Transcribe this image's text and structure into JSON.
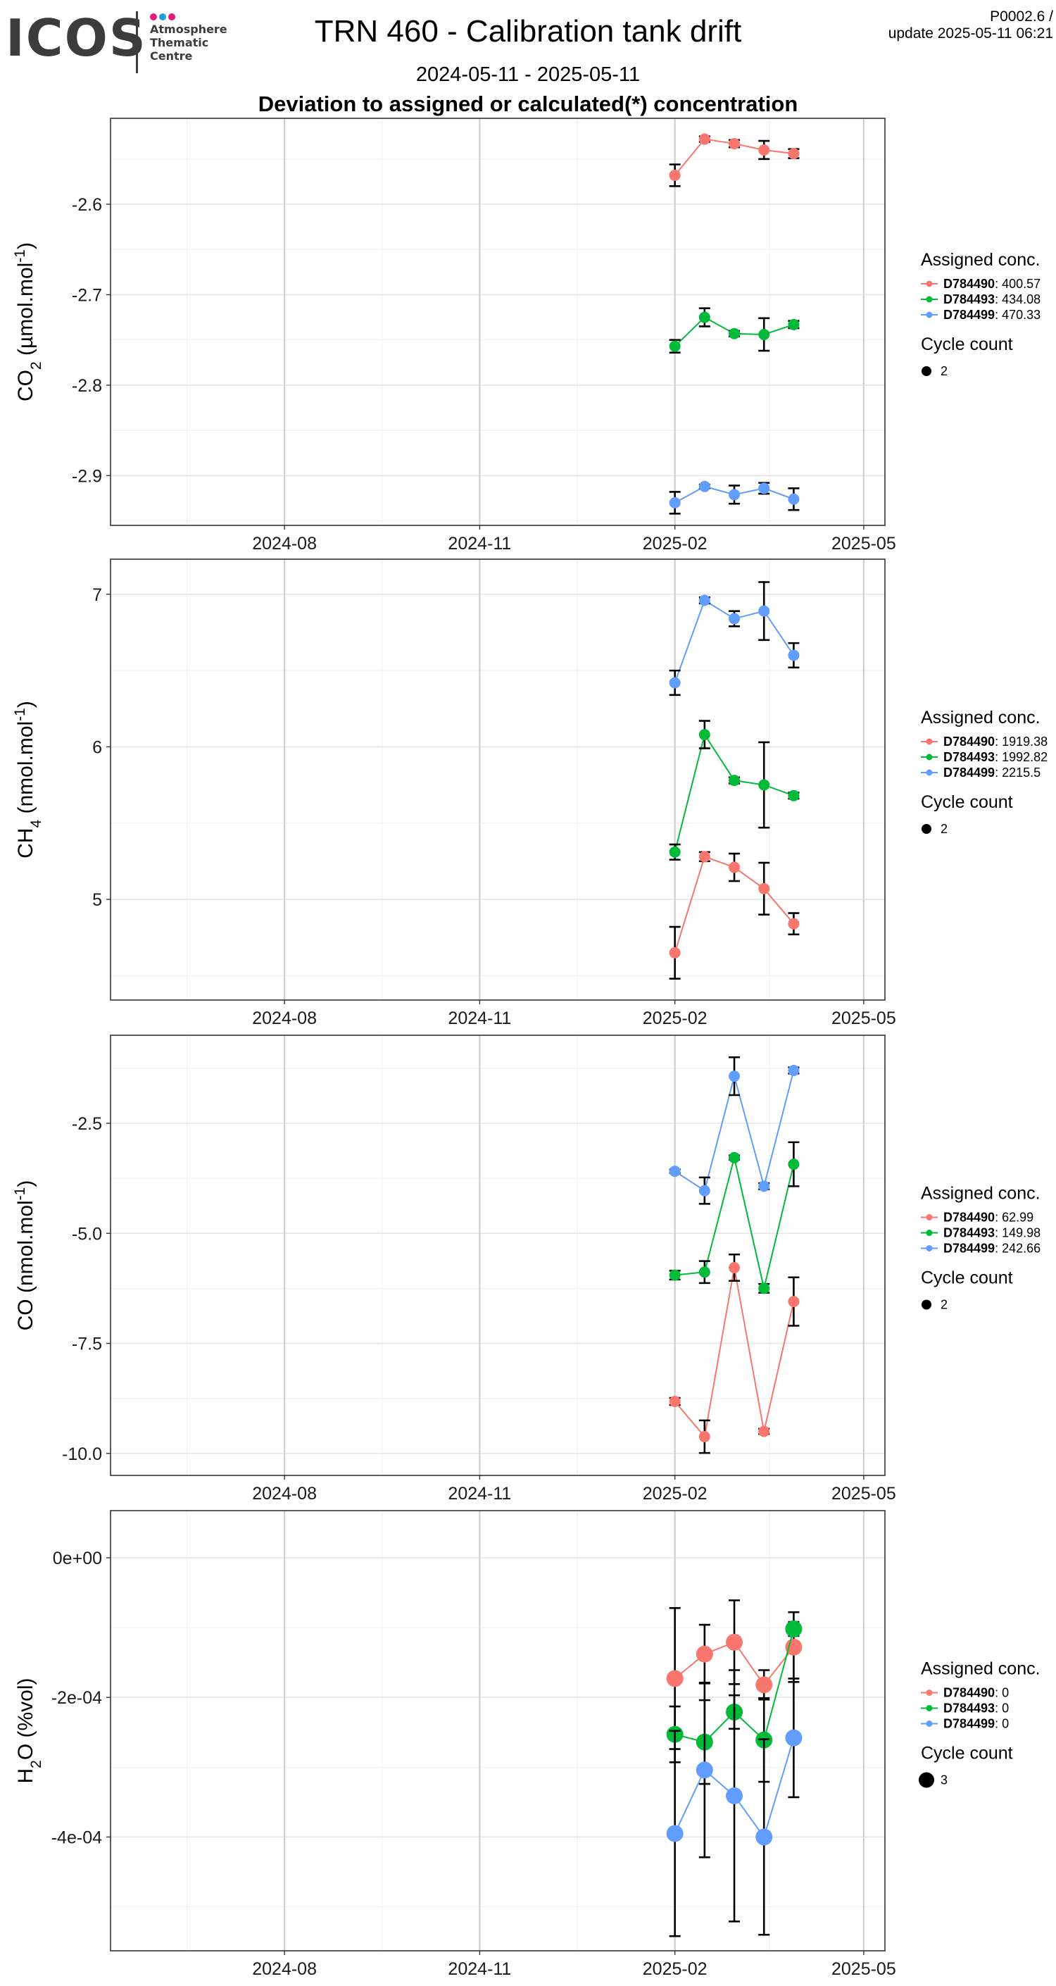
{
  "logo": {
    "word": "ICOS",
    "line1": "Atmosphere",
    "line2": "Thematic",
    "line3": "Centre",
    "dot_colors": [
      "#e6197a",
      "#1ea0dc",
      "#e6197a"
    ]
  },
  "header": {
    "title": "TRN 460 - Calibration tank drift",
    "subtitle": "2024-05-11 - 2025-05-11",
    "heading": "Deviation to assigned or calculated(*) concentration",
    "code": "P0002.6 /",
    "update": "update  2025-05-11 06:21"
  },
  "colors": {
    "D784490": "#F8766D",
    "D784493": "#00BA38",
    "D784499": "#619CFF",
    "error_bar": "#000000"
  },
  "chart_data": [
    {
      "type": "line",
      "gas": "CO2",
      "ylabel_base": "CO",
      "ylabel_sub": "2",
      "ylabel_unit": " (µmol.mol",
      "ylabel_exp": "-1",
      "ylabel_end": ")",
      "ylim": [
        -2.955,
        -2.505
      ],
      "yticks": [
        -2.9,
        -2.8,
        -2.7,
        -2.6
      ],
      "ytick_labels": [
        "-2.9",
        "-2.8",
        "-2.7",
        "-2.6"
      ],
      "xlim": [
        "2024-05-11",
        "2025-05-11"
      ],
      "xticks": [
        "2024-08-01",
        "2024-11-01",
        "2025-02-01",
        "2025-05-01"
      ],
      "xtick_labels": [
        "2024-08",
        "2024-11",
        "2025-02",
        "2025-05"
      ],
      "x": [
        "2025-02-01",
        "2025-02-15",
        "2025-03-01",
        "2025-03-15",
        "2025-03-29"
      ],
      "legend": {
        "title": "Assigned conc.",
        "entries": [
          {
            "id": "D784490",
            "value": ": 400.57"
          },
          {
            "id": "D784493",
            "value": ": 434.08"
          },
          {
            "id": "D784499",
            "value": ": 470.33"
          }
        ],
        "size_title": "Cycle count",
        "size_value": "2"
      },
      "series": [
        {
          "name": "D784490",
          "values": [
            -2.568,
            -2.528,
            -2.533,
            -2.54,
            -2.544
          ],
          "errors": [
            0.012,
            0.003,
            0.004,
            0.01,
            0.005
          ]
        },
        {
          "name": "D784493",
          "values": [
            -2.757,
            -2.725,
            -2.743,
            -2.744,
            -2.733
          ],
          "errors": [
            0.007,
            0.01,
            0.003,
            0.018,
            0.004
          ]
        },
        {
          "name": "D784499",
          "values": [
            -2.93,
            -2.912,
            -2.921,
            -2.914,
            -2.926
          ],
          "errors": [
            0.012,
            0.002,
            0.01,
            0.006,
            0.012
          ]
        }
      ]
    },
    {
      "type": "line",
      "gas": "CH4",
      "ylabel_base": "CH",
      "ylabel_sub": "4",
      "ylabel_unit": " (nmol.mol",
      "ylabel_exp": "-1",
      "ylabel_end": ")",
      "ylim": [
        4.34,
        7.23
      ],
      "yticks": [
        5,
        6,
        7
      ],
      "ytick_labels": [
        "5",
        "6",
        "7"
      ],
      "xlim": [
        "2024-05-11",
        "2025-05-11"
      ],
      "xticks": [
        "2024-08-01",
        "2024-11-01",
        "2025-02-01",
        "2025-05-01"
      ],
      "xtick_labels": [
        "2024-08",
        "2024-11",
        "2025-02",
        "2025-05"
      ],
      "x": [
        "2025-02-01",
        "2025-02-15",
        "2025-03-01",
        "2025-03-15",
        "2025-03-29"
      ],
      "legend": {
        "title": "Assigned conc.",
        "entries": [
          {
            "id": "D784490",
            "value": ": 1919.38"
          },
          {
            "id": "D784493",
            "value": ": 1992.82"
          },
          {
            "id": "D784499",
            "value": ": 2215.5"
          }
        ],
        "size_title": "Cycle count",
        "size_value": "2"
      },
      "series": [
        {
          "name": "D784490",
          "values": [
            4.65,
            5.28,
            5.21,
            5.07,
            4.84
          ],
          "errors": [
            0.17,
            0.03,
            0.09,
            0.17,
            0.07
          ]
        },
        {
          "name": "D784493",
          "values": [
            5.31,
            6.08,
            5.78,
            5.75,
            5.68
          ],
          "errors": [
            0.05,
            0.09,
            0.02,
            0.28,
            0.02
          ]
        },
        {
          "name": "D784499",
          "values": [
            6.42,
            6.96,
            6.84,
            6.89,
            6.6
          ],
          "errors": [
            0.08,
            0.02,
            0.05,
            0.19,
            0.08
          ]
        }
      ]
    },
    {
      "type": "line",
      "gas": "CO",
      "ylabel_base": "CO",
      "ylabel_sub": "",
      "ylabel_unit": " (nmol.mol",
      "ylabel_exp": "-1",
      "ylabel_end": ")",
      "ylim": [
        -10.5,
        -0.5
      ],
      "yticks": [
        -10,
        -7.5,
        -5,
        -2.5
      ],
      "ytick_labels": [
        "-10.0",
        "-7.5",
        "-5.0",
        "-2.5"
      ],
      "xlim": [
        "2024-05-11",
        "2025-05-11"
      ],
      "xticks": [
        "2024-08-01",
        "2024-11-01",
        "2025-02-01",
        "2025-05-01"
      ],
      "xtick_labels": [
        "2024-08",
        "2024-11",
        "2025-02",
        "2025-05"
      ],
      "x": [
        "2025-02-01",
        "2025-02-15",
        "2025-03-01",
        "2025-03-15",
        "2025-03-29"
      ],
      "legend": {
        "title": "Assigned conc.",
        "entries": [
          {
            "id": "D784490",
            "value": ": 62.99"
          },
          {
            "id": "D784493",
            "value": ": 149.98"
          },
          {
            "id": "D784499",
            "value": ": 242.66"
          }
        ],
        "size_title": "Cycle count",
        "size_value": "2"
      },
      "series": [
        {
          "name": "D784490",
          "values": [
            -8.82,
            -9.62,
            -5.78,
            -9.5,
            -6.55
          ],
          "errors": [
            0.08,
            0.37,
            0.3,
            0.06,
            0.55
          ]
        },
        {
          "name": "D784493",
          "values": [
            -5.95,
            -5.88,
            -3.28,
            -6.25,
            -3.43
          ],
          "errors": [
            0.1,
            0.25,
            0.05,
            0.1,
            0.5
          ]
        },
        {
          "name": "D784499",
          "values": [
            -3.59,
            -4.03,
            -1.43,
            -3.93,
            -1.3
          ],
          "errors": [
            0.04,
            0.3,
            0.43,
            0.07,
            0.07
          ]
        }
      ]
    },
    {
      "type": "line",
      "gas": "H2O",
      "ylabel_base": "H",
      "ylabel_sub": "2",
      "ylabel_unit": "O (%vol)",
      "ylabel_exp": "",
      "ylabel_end": "",
      "ylim": [
        -0.000563,
        6.75e-05
      ],
      "yticks": [
        -0.0004,
        -0.0002,
        0
      ],
      "ytick_labels": [
        "-4e-04",
        "-2e-04",
        "0e+00"
      ],
      "xlim": [
        "2024-05-11",
        "2025-05-11"
      ],
      "xticks": [
        "2024-08-01",
        "2024-11-01",
        "2025-02-01",
        "2025-05-01"
      ],
      "xtick_labels": [
        "2024-08",
        "2024-11",
        "2025-02",
        "2025-05"
      ],
      "x": [
        "2025-02-01",
        "2025-02-15",
        "2025-03-01",
        "2025-03-15",
        "2025-03-29"
      ],
      "legend": {
        "title": "Assigned conc.",
        "entries": [
          {
            "id": "D784490",
            "value": ": 0"
          },
          {
            "id": "D784493",
            "value": ": 0"
          },
          {
            "id": "D784499",
            "value": ": 0"
          }
        ],
        "size_title": "Cycle count",
        "size_value": "3"
      },
      "series": [
        {
          "name": "D784490",
          "values": [
            -0.000173,
            -0.000138,
            -0.000121,
            -0.000182,
            -0.000128
          ],
          "errors": [
            0.000101,
            4.2e-05,
            6e-05,
            2.1e-05,
            5e-05
          ]
        },
        {
          "name": "D784493",
          "values": [
            -0.000253,
            -0.000264,
            -0.000221,
            -0.000261,
            -0.000102
          ],
          "errors": [
            4e-05,
            6e-05,
            2.4e-05,
            6e-05,
            1e-05
          ]
        },
        {
          "name": "D784499",
          "values": [
            -0.000395,
            -0.000304,
            -0.000341,
            -0.0004,
            -0.000258
          ],
          "errors": [
            0.000147,
            0.000125,
            0.00018,
            0.00014,
            8.5e-05
          ]
        }
      ]
    }
  ]
}
